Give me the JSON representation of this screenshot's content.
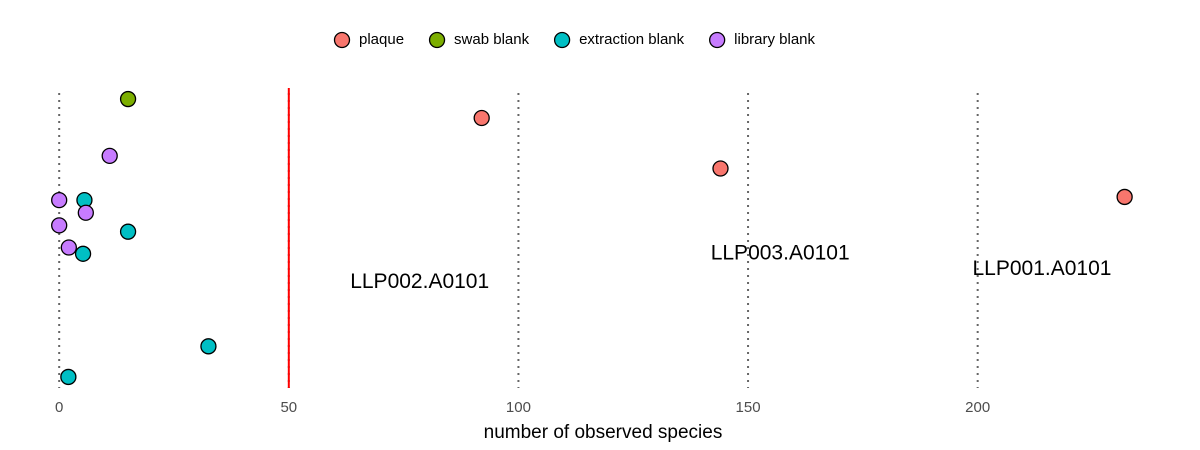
{
  "chart_data": {
    "type": "scatter",
    "title": "",
    "xlabel": "number of observed species",
    "ylabel": "",
    "xlim": [
      -2,
      236
    ],
    "x_ticks": [
      0,
      50,
      100,
      150,
      200
    ],
    "grid": "vertical dotted at x ticks",
    "threshold": {
      "x": 50,
      "color": "#FF0000"
    },
    "legend": {
      "position": "top",
      "entries": [
        {
          "name": "plaque",
          "color": "#F8766D"
        },
        {
          "name": "swab blank",
          "color": "#7CAE00"
        },
        {
          "name": "extraction blank",
          "color": "#00BFC4"
        },
        {
          "name": "library blank",
          "color": "#C77CFF"
        }
      ]
    },
    "series": [
      {
        "name": "plaque",
        "color": "#F8766D",
        "points": [
          {
            "x": 92,
            "y": 8.2
          },
          {
            "x": 144,
            "y": 6.6
          },
          {
            "x": 232,
            "y": 5.7
          }
        ]
      },
      {
        "name": "swab blank",
        "color": "#7CAE00",
        "points": [
          {
            "x": 15,
            "y": 8.8
          }
        ]
      },
      {
        "name": "extraction blank",
        "color": "#00BFC4",
        "points": [
          {
            "x": 5.5,
            "y": 5.6
          },
          {
            "x": 15,
            "y": 4.6
          },
          {
            "x": 5.2,
            "y": 3.9
          },
          {
            "x": 32.5,
            "y": 0.97
          },
          {
            "x": 2,
            "y": 0
          }
        ]
      },
      {
        "name": "library blank",
        "color": "#C77CFF",
        "points": [
          {
            "x": 11,
            "y": 7.0
          },
          {
            "x": 0,
            "y": 5.6
          },
          {
            "x": 5.8,
            "y": 5.2
          },
          {
            "x": 0,
            "y": 4.8
          },
          {
            "x": 2.1,
            "y": 4.1
          }
        ]
      }
    ],
    "annotations": [
      {
        "text": "LLP002.A0101",
        "x": 78.5,
        "y": 3.0
      },
      {
        "text": "LLP003.A0101",
        "x": 157,
        "y": 3.9
      },
      {
        "text": "LLP001.A0101",
        "x": 214,
        "y": 3.4
      }
    ]
  }
}
